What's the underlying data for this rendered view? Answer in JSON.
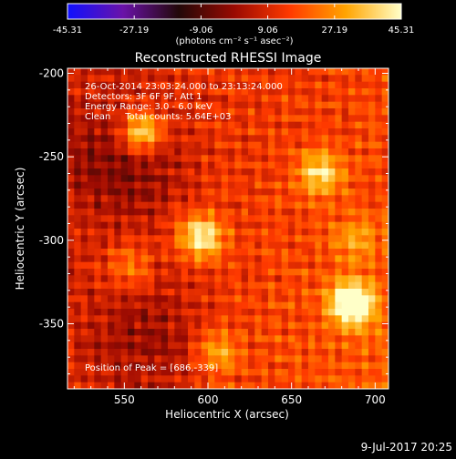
{
  "chart_data": {
    "type": "heatmap",
    "title": "Reconstructed RHESSI Image",
    "xlabel": "Heliocentric X (arcsec)",
    "ylabel": "Heliocentric Y (arcsec)",
    "xlim": [
      516,
      708
    ],
    "ylim": [
      -389,
      -197
    ],
    "x_ticks": [
      550,
      600,
      650,
      700
    ],
    "y_ticks": [
      -200,
      -250,
      -300,
      -350
    ],
    "colorbar": {
      "range": [
        -45.31,
        45.31
      ],
      "tick_labels": [
        "-45.31",
        "-27.19",
        "-9.06",
        "9.06",
        "27.19",
        "45.31"
      ],
      "unit_label": "(photons cm⁻² s⁻¹ asec⁻²)",
      "colors": [
        "#1010ff",
        "#6a12a8",
        "#220808",
        "#9a0a02",
        "#ff3a00",
        "#ffa400",
        "#ffffc8"
      ]
    },
    "info_lines": [
      "26-Oct-2014 23:03:24.000 to 23:13:24.000",
      "Detectors: 3F 6F 9F, Att 1",
      "Energy Range: 3.0 - 6.0 keV",
      "Clean     Total counts: 5.64E+03"
    ],
    "peak_label": "Position of Peak = [686,-339]",
    "peak": [
      686,
      -339
    ],
    "sources": [
      {
        "x": 686,
        "y": -338,
        "value": 45.31
      },
      {
        "x": 596,
        "y": -298,
        "value": 34
      },
      {
        "x": 560,
        "y": -235,
        "value": 36
      },
      {
        "x": 667,
        "y": -260,
        "value": 26
      },
      {
        "x": 606,
        "y": -367,
        "value": 20
      },
      {
        "x": 553,
        "y": -316,
        "value": 16
      },
      {
        "x": 688,
        "y": -300,
        "value": 14
      }
    ],
    "date_stamp": "9-Jul-2017 20:25"
  }
}
